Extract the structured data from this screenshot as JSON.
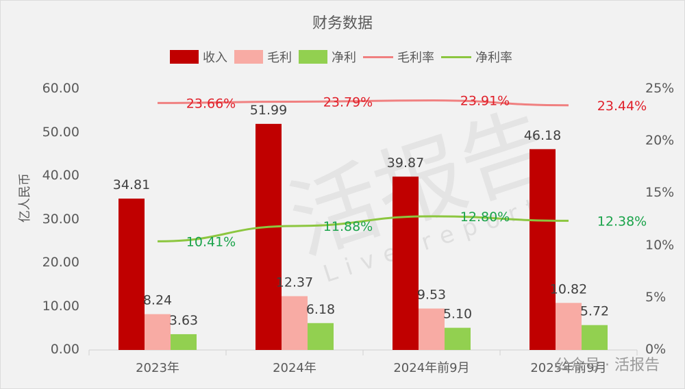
{
  "chart_data": {
    "type": "bar",
    "title": "财务数据",
    "categories": [
      "2023年",
      "2024年",
      "2024年前9月",
      "2025年前9月"
    ],
    "ylabel": "亿人民币",
    "ylim": [
      0,
      60
    ],
    "yticks": [
      "0.00",
      "10.00",
      "20.00",
      "30.00",
      "40.00",
      "50.00",
      "60.00"
    ],
    "y2lim": [
      0,
      25
    ],
    "y2ticks": [
      "0%",
      "5%",
      "10%",
      "15%",
      "20%",
      "25%"
    ],
    "legend_position": "top",
    "grid": false,
    "series": [
      {
        "name": "收入",
        "type": "bar",
        "axis": "left",
        "color": "#c00000",
        "values": [
          34.81,
          51.99,
          39.87,
          46.18
        ],
        "labels": [
          "34.81",
          "51.99",
          "39.87",
          "46.18"
        ]
      },
      {
        "name": "毛利",
        "type": "bar",
        "axis": "left",
        "color": "#f8aba4",
        "values": [
          8.24,
          12.37,
          9.53,
          10.82
        ],
        "labels": [
          "8.24",
          "12.37",
          "9.53",
          "10.82"
        ]
      },
      {
        "name": "净利",
        "type": "bar",
        "axis": "left",
        "color": "#92d050",
        "values": [
          3.63,
          6.18,
          5.1,
          5.72
        ],
        "labels": [
          "3.63",
          "6.18",
          "5.10",
          "5.72"
        ]
      },
      {
        "name": "毛利率",
        "type": "line",
        "axis": "right",
        "color": "#f08080",
        "label_color": "#e0202a",
        "values": [
          23.66,
          23.79,
          23.91,
          23.44
        ],
        "labels": [
          "23.66%",
          "23.79%",
          "23.91%",
          "23.44%"
        ]
      },
      {
        "name": "净利率",
        "type": "line",
        "axis": "right",
        "color": "#8cc63f",
        "label_color": "#1aa34a",
        "values": [
          10.41,
          11.88,
          12.8,
          12.38
        ],
        "labels": [
          "10.41%",
          "11.88%",
          "12.80%",
          "12.38%"
        ]
      }
    ]
  },
  "legend": [
    {
      "label": "收入",
      "kind": "box",
      "color": "#c00000"
    },
    {
      "label": "毛利",
      "kind": "box",
      "color": "#f8aba4"
    },
    {
      "label": "净利",
      "kind": "box",
      "color": "#92d050"
    },
    {
      "label": "毛利率",
      "kind": "line",
      "color": "#f08080"
    },
    {
      "label": "净利率",
      "kind": "line",
      "color": "#8cc63f"
    }
  ],
  "watermark": {
    "text": "公众号 · 活报告",
    "bg_text": "活报告",
    "bg_sub": "Live report"
  }
}
